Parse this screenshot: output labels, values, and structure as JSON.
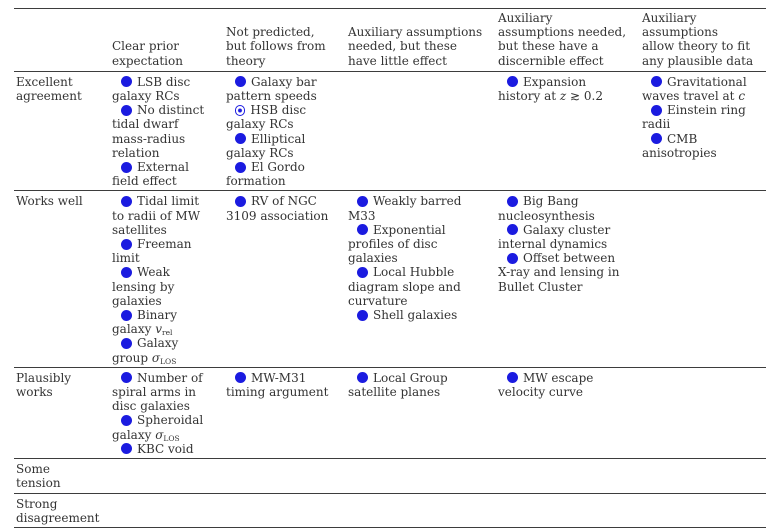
{
  "colors": {
    "bullet_blue": "#1b1be0",
    "text": "#333333",
    "rule": "#3d3d3d",
    "background": "#ffffff"
  },
  "table": {
    "column_headers": [
      "",
      "Clear prior expectation",
      "Not predicted, but follows from theory",
      "Auxiliary assumptions needed, but these have little effect",
      "Auxiliary assumptions needed, but these have a discernible effect",
      "Auxiliary assumptions allow theory to fit any plausible data"
    ],
    "bullet_legend": {
      "filled": "filled-blue-circle",
      "circled-dot": "open-blue-circle-with-center-dot"
    },
    "rows": [
      {
        "label": "Excellent agreement",
        "cells": [
          [
            {
              "bullet": "filled",
              "text": "LSB disc galaxy RCs"
            },
            {
              "bullet": "filled",
              "text": "No distinct tidal dwarf mass-radius relation"
            },
            {
              "bullet": "filled",
              "text": "External field effect"
            }
          ],
          [
            {
              "bullet": "filled",
              "text": "Galaxy bar pattern speeds"
            },
            {
              "bullet": "circled-dot",
              "text": "HSB disc galaxy RCs"
            },
            {
              "bullet": "filled",
              "text": "Elliptical galaxy RCs"
            },
            {
              "bullet": "filled",
              "text": "El Gordo formation"
            }
          ],
          [],
          [
            {
              "bullet": "filled",
              "segments": [
                {
                  "text": "Expansion history at "
                },
                {
                  "italic": "z"
                },
                {
                  "text": " ≳ 0.2"
                }
              ]
            }
          ],
          [
            {
              "bullet": "filled",
              "segments": [
                {
                  "text": "Gravitational waves travel at "
                },
                {
                  "italic": "c"
                }
              ]
            },
            {
              "bullet": "filled",
              "text": "Einstein ring radii"
            },
            {
              "bullet": "filled",
              "text": "CMB anisotropies"
            }
          ]
        ]
      },
      {
        "label": "Works well",
        "cells": [
          [
            {
              "bullet": "filled",
              "text": "Tidal limit to radii of MW satellites"
            },
            {
              "bullet": "filled",
              "text": "Freeman limit"
            },
            {
              "bullet": "filled",
              "text": "Weak lensing by galaxies"
            },
            {
              "bullet": "filled",
              "segments": [
                {
                  "text": "Binary galaxy "
                },
                {
                  "italic": "v"
                },
                {
                  "sub": "rel"
                }
              ]
            },
            {
              "bullet": "filled",
              "segments": [
                {
                  "text": "Galaxy group "
                },
                {
                  "italic": "σ"
                },
                {
                  "sub": "LOS"
                }
              ]
            }
          ],
          [
            {
              "bullet": "filled",
              "text": "RV of NGC 3109 association"
            }
          ],
          [
            {
              "bullet": "filled",
              "text": "Weakly barred M33"
            },
            {
              "bullet": "filled",
              "text": "Exponential profiles of disc galaxies"
            },
            {
              "bullet": "filled",
              "text": "Local Hubble diagram slope and curvature"
            },
            {
              "bullet": "filled",
              "text": "Shell galaxies"
            }
          ],
          [
            {
              "bullet": "filled",
              "text": "Big Bang nucleosynthesis"
            },
            {
              "bullet": "filled",
              "text": "Galaxy cluster internal dynamics"
            },
            {
              "bullet": "filled",
              "text": "Offset between X-ray and lensing in Bullet Cluster"
            }
          ],
          []
        ]
      },
      {
        "label": "Plausibly works",
        "cells": [
          [
            {
              "bullet": "filled",
              "text": "Number of spiral arms in disc galaxies"
            },
            {
              "bullet": "filled",
              "segments": [
                {
                  "text": "Spheroidal galaxy "
                },
                {
                  "italic": "σ"
                },
                {
                  "sub": "LOS"
                }
              ]
            },
            {
              "bullet": "filled",
              "text": "KBC void"
            }
          ],
          [
            {
              "bullet": "filled",
              "text": "MW-M31 timing argument"
            }
          ],
          [
            {
              "bullet": "filled",
              "text": "Local Group satellite planes"
            }
          ],
          [
            {
              "bullet": "filled",
              "text": "MW escape velocity curve"
            }
          ],
          []
        ]
      },
      {
        "label": "Some tension",
        "cells": [
          [],
          [],
          [],
          [],
          []
        ]
      },
      {
        "label": "Strong disagreement",
        "cells": [
          [],
          [],
          [],
          [],
          []
        ]
      }
    ]
  }
}
